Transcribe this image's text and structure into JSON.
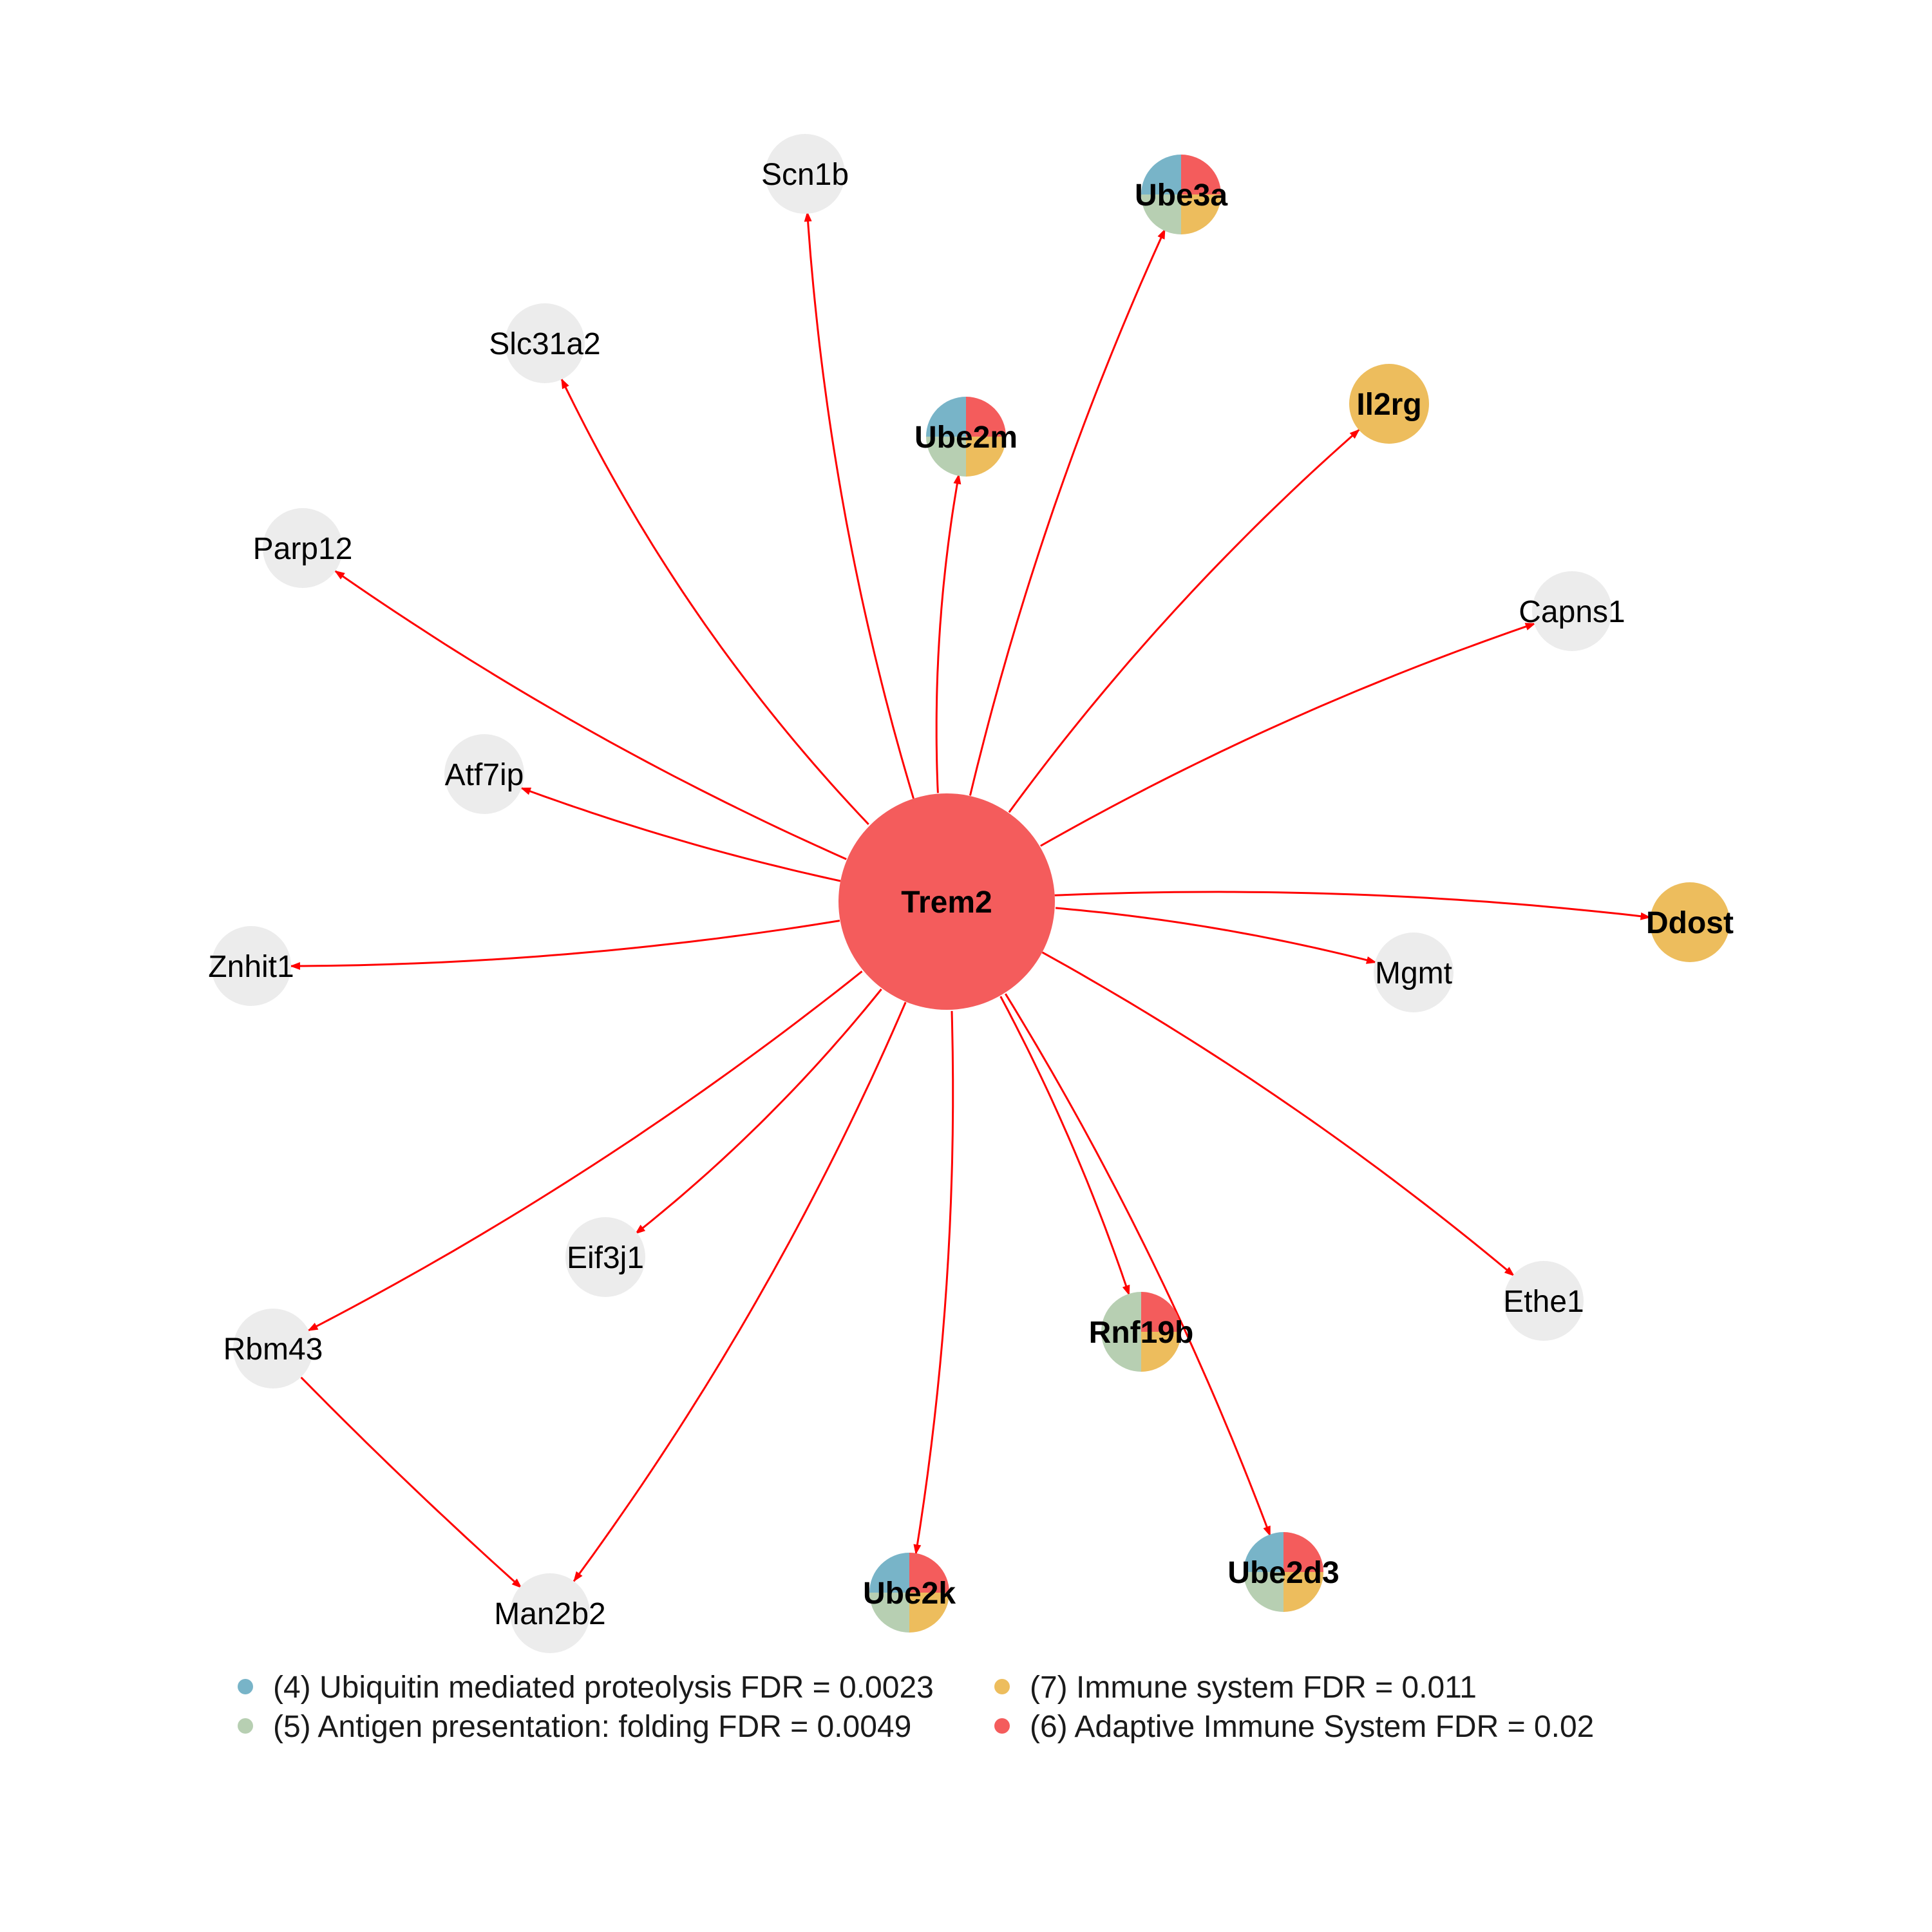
{
  "colors": {
    "edge": "#ff0000",
    "plain_node": "#ececec",
    "ubiquitin": "#78b4c8",
    "antigen": "#b7cfb2",
    "immune": "#edbd5d",
    "adaptive": "#f45c5c"
  },
  "network": {
    "hub": {
      "id": "Trem2",
      "label": "Trem2",
      "pathways": [
        "adaptive"
      ]
    },
    "nodes": [
      {
        "id": "Scn1b",
        "label": "Scn1b",
        "pathways": []
      },
      {
        "id": "Ube3a",
        "label": "Ube3a",
        "pathways": [
          "ubiquitin",
          "antigen",
          "immune",
          "adaptive"
        ]
      },
      {
        "id": "Slc31a2",
        "label": "Slc31a2",
        "pathways": []
      },
      {
        "id": "Ube2m",
        "label": "Ube2m",
        "pathways": [
          "ubiquitin",
          "antigen",
          "immune",
          "adaptive"
        ]
      },
      {
        "id": "Il2rg",
        "label": "Il2rg",
        "pathways": [
          "immune"
        ]
      },
      {
        "id": "Parp12",
        "label": "Parp12",
        "pathways": []
      },
      {
        "id": "Capns1",
        "label": "Capns1",
        "pathways": []
      },
      {
        "id": "Atf7ip",
        "label": "Atf7ip",
        "pathways": []
      },
      {
        "id": "Ddost",
        "label": "Ddost",
        "pathways": [
          "immune"
        ]
      },
      {
        "id": "Znhit1",
        "label": "Znhit1",
        "pathways": []
      },
      {
        "id": "Mgmt",
        "label": "Mgmt",
        "pathways": []
      },
      {
        "id": "Eif3j1",
        "label": "Eif3j1",
        "pathways": []
      },
      {
        "id": "Ethe1",
        "label": "Ethe1",
        "pathways": []
      },
      {
        "id": "Rbm43",
        "label": "Rbm43",
        "pathways": []
      },
      {
        "id": "Rnf19b",
        "label": "Rnf19b",
        "pathways": [
          "antigen",
          "immune",
          "adaptive"
        ]
      },
      {
        "id": "Man2b2",
        "label": "Man2b2",
        "pathways": []
      },
      {
        "id": "Ube2k",
        "label": "Ube2k",
        "pathways": [
          "ubiquitin",
          "antigen",
          "immune",
          "adaptive"
        ]
      },
      {
        "id": "Ube2d3",
        "label": "Ube2d3",
        "pathways": [
          "ubiquitin",
          "antigen",
          "immune",
          "adaptive"
        ]
      }
    ],
    "edges": [
      {
        "source": "Trem2",
        "target": "Scn1b"
      },
      {
        "source": "Trem2",
        "target": "Ube3a"
      },
      {
        "source": "Trem2",
        "target": "Slc31a2"
      },
      {
        "source": "Trem2",
        "target": "Ube2m"
      },
      {
        "source": "Trem2",
        "target": "Il2rg"
      },
      {
        "source": "Trem2",
        "target": "Parp12"
      },
      {
        "source": "Trem2",
        "target": "Capns1"
      },
      {
        "source": "Trem2",
        "target": "Atf7ip"
      },
      {
        "source": "Trem2",
        "target": "Ddost"
      },
      {
        "source": "Trem2",
        "target": "Znhit1"
      },
      {
        "source": "Trem2",
        "target": "Mgmt"
      },
      {
        "source": "Trem2",
        "target": "Eif3j1"
      },
      {
        "source": "Trem2",
        "target": "Ethe1"
      },
      {
        "source": "Trem2",
        "target": "Rbm43"
      },
      {
        "source": "Trem2",
        "target": "Rnf19b"
      },
      {
        "source": "Trem2",
        "target": "Man2b2"
      },
      {
        "source": "Trem2",
        "target": "Ube2k"
      },
      {
        "source": "Trem2",
        "target": "Ube2d3"
      },
      {
        "source": "Rbm43",
        "target": "Man2b2"
      }
    ]
  },
  "legend": [
    {
      "key": "ubiquitin",
      "text": "(4) Ubiquitin mediated proteolysis FDR = 0.0023"
    },
    {
      "key": "immune",
      "text": "(7) Immune system FDR = 0.011"
    },
    {
      "key": "antigen",
      "text": "(5) Antigen presentation: folding FDR = 0.0049"
    },
    {
      "key": "adaptive",
      "text": "(6) Adaptive Immune System FDR = 0.02"
    }
  ]
}
